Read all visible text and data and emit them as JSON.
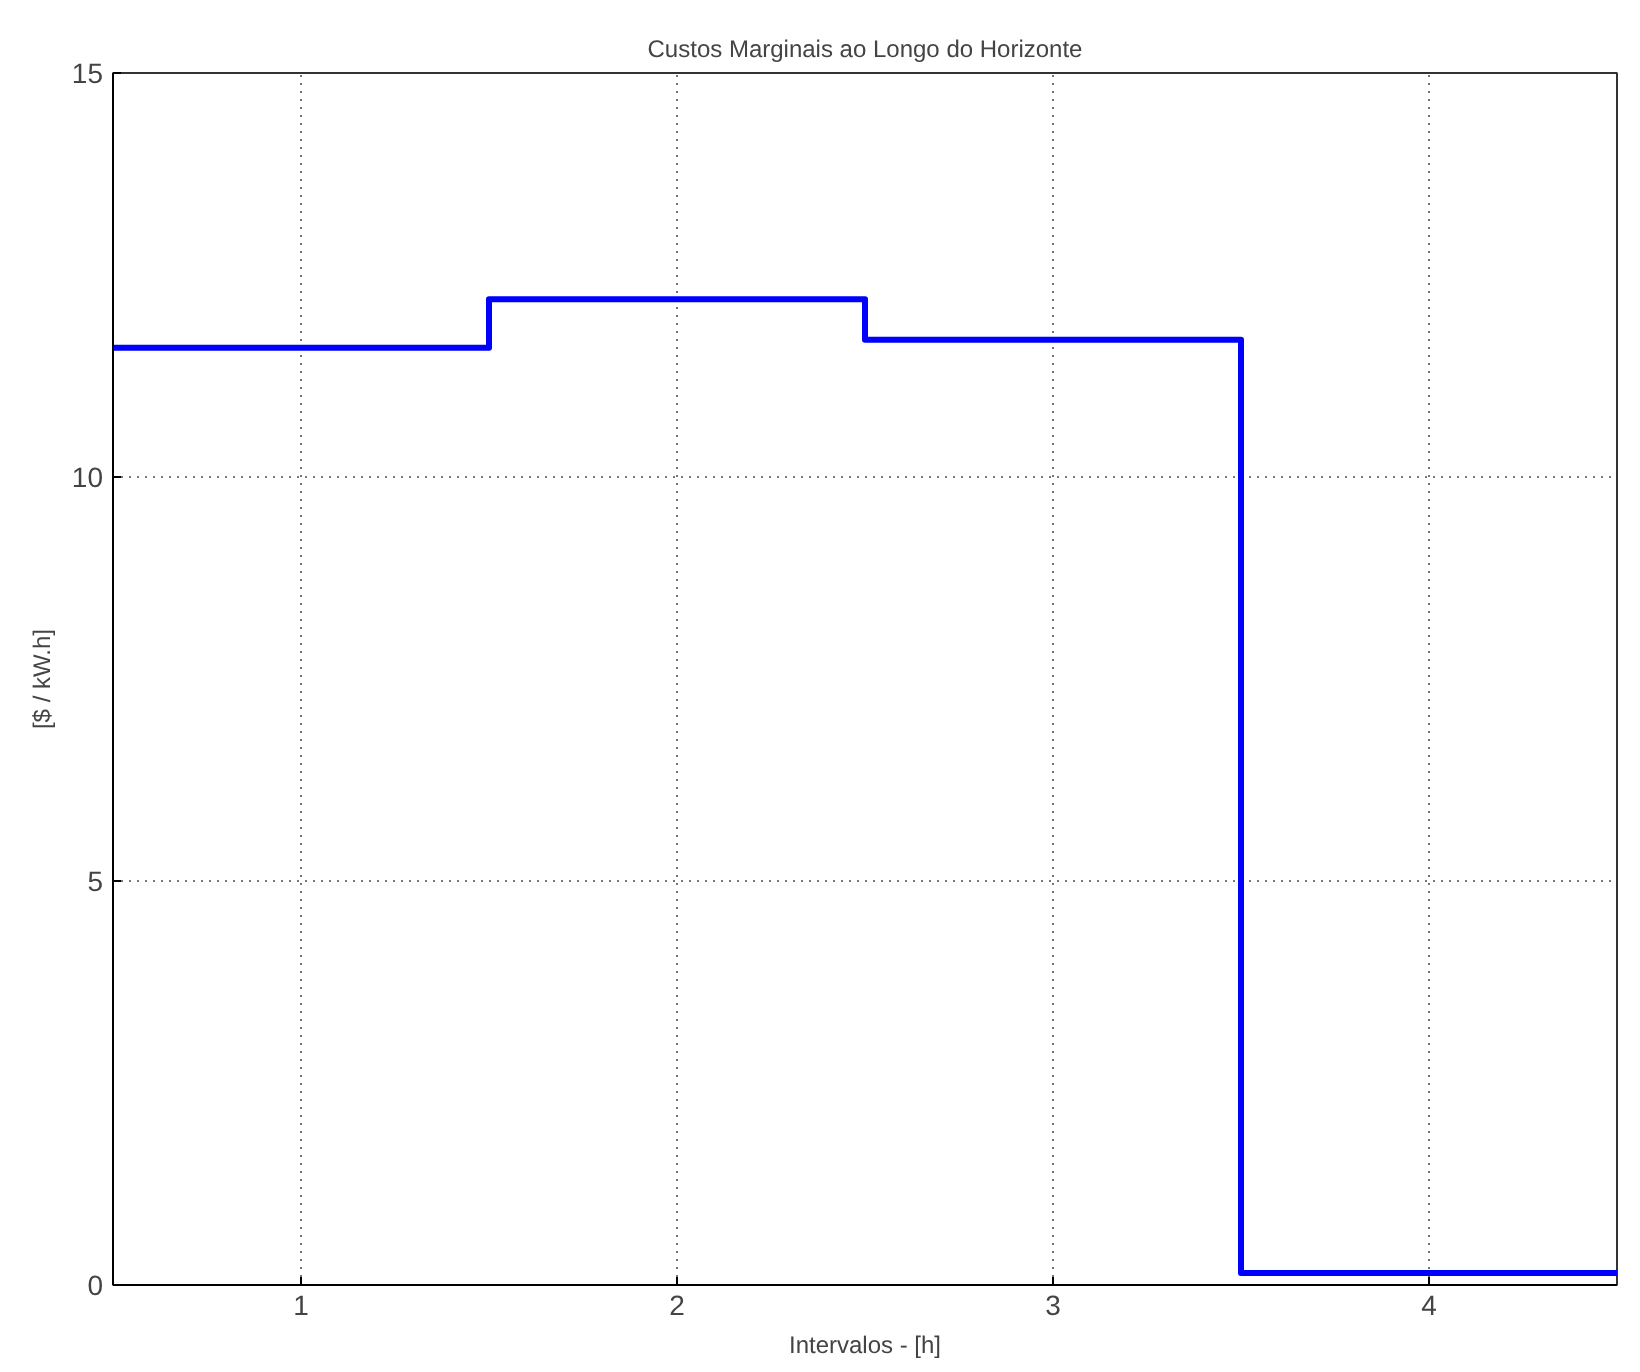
{
  "chart_data": {
    "type": "step",
    "title": "Custos Marginais ao Longo do Horizonte",
    "xlabel": "Intervalos - [h]",
    "ylabel": "[$ / kW.h]",
    "x": [
      0.5,
      1.5,
      2.5,
      3.5,
      4.5
    ],
    "series": [
      {
        "color": "#0000ff",
        "values": [
          11.6,
          12.2,
          11.7,
          0.15,
          0.15
        ]
      }
    ],
    "xlim": [
      0.5,
      4.5
    ],
    "xticks": [
      1,
      2,
      3,
      4
    ],
    "ylim": [
      0,
      15
    ],
    "yticks": [
      0,
      5,
      10,
      15
    ],
    "grid": true,
    "line_style": "solid",
    "marker": "none"
  }
}
